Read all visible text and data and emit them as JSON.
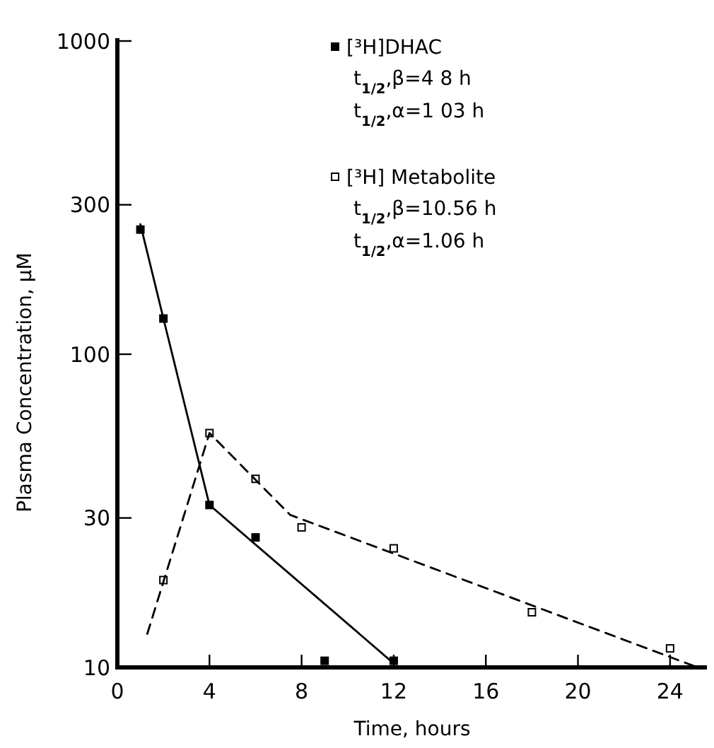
{
  "chart_data": {
    "type": "scatter",
    "xlabel": "Time, hours",
    "ylabel": "Plasma Concentration, µM",
    "log": "y",
    "xlim": [
      0,
      25.6
    ],
    "xticks": [
      0,
      4,
      8,
      12,
      16,
      20,
      24
    ],
    "ylim": [
      10,
      1000
    ],
    "yticks": [
      10,
      30,
      100,
      300,
      1000
    ],
    "legend": "top right",
    "grid": false,
    "series": [
      {
        "name": "[³H]DHAC",
        "marker": "square",
        "color": "#000000",
        "x": [
          1,
          2,
          4,
          6,
          9,
          12
        ],
        "values": [
          250,
          130,
          33,
          26,
          10.5,
          10.5
        ]
      },
      {
        "name": "[³H] Metabolite",
        "marker": "square_open",
        "color": "#000000",
        "x": [
          2,
          4,
          6,
          8,
          12,
          18,
          24
        ],
        "values": [
          19,
          56,
          40,
          28,
          24,
          15,
          11.5
        ]
      },
      {
        "type": "line",
        "line_style": "solid",
        "marker": "none",
        "color": "#000000",
        "x": [
          1,
          2,
          4,
          12
        ],
        "values": [
          260,
          130,
          33,
          10.3
        ]
      },
      {
        "type": "line",
        "line_style": "dashed",
        "marker": "none",
        "color": "#000000",
        "x": [
          1.3,
          4,
          7.5,
          25.2
        ],
        "values": [
          12.8,
          56,
          30.7,
          10
        ]
      }
    ],
    "annotations": [
      "t$_{1/2}$,β=4 8 h",
      "t$_{1/2}$,α=1 03 h",
      "t$_{1/2}$,β=10.56 h",
      "t$_{1/2}$,α=1.06 h"
    ]
  }
}
